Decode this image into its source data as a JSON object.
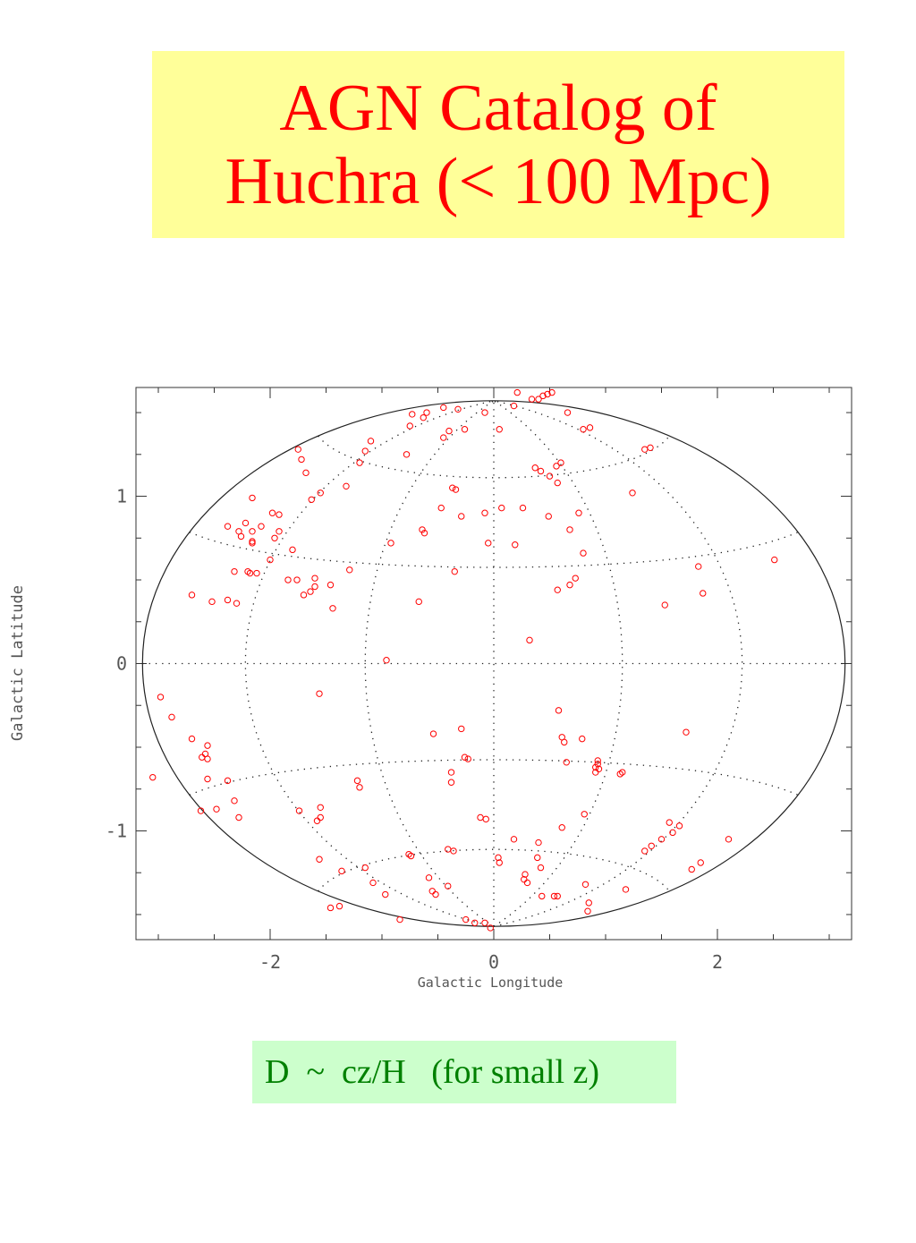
{
  "header": {
    "title_line1": "AGN Catalog of",
    "title_line2": "Huchra (< 100 Mpc)"
  },
  "footer": {
    "formula": "D  ~  cz/H   (for small z)"
  },
  "colors": {
    "title": "#ff0000",
    "title_bg": "#ffff99",
    "formula": "#008000",
    "formula_bg": "#ccffcc",
    "points": "#ff0000"
  },
  "chart_data": {
    "type": "scatter",
    "projection": "hammer-aitoff",
    "xlabel": "Galactic Longitude",
    "ylabel": "Galactic Latitude",
    "xlim": [
      -3.2,
      3.2
    ],
    "ylim": [
      -1.65,
      1.65
    ],
    "xticks": [
      -2,
      0,
      2
    ],
    "yticks": [
      -1,
      0,
      1
    ],
    "xtick_labels": [
      "-2",
      "0",
      "2"
    ],
    "ytick_labels": [
      "-1",
      "0",
      "1"
    ],
    "grid": "dotted graticule",
    "marker": "open circle",
    "points": [
      [
        -0.08,
        1.5
      ],
      [
        0.21,
        1.62
      ],
      [
        -0.63,
        1.47
      ],
      [
        -0.6,
        1.5
      ],
      [
        -0.45,
        1.53
      ],
      [
        -0.32,
        1.52
      ],
      [
        -0.73,
        1.49
      ],
      [
        0.18,
        1.54
      ],
      [
        0.4,
        1.58
      ],
      [
        0.44,
        1.6
      ],
      [
        0.48,
        1.61
      ],
      [
        0.52,
        1.62
      ],
      [
        0.34,
        1.58
      ],
      [
        0.66,
        1.5
      ],
      [
        0.8,
        1.4
      ],
      [
        0.86,
        1.41
      ],
      [
        -0.45,
        1.35
      ],
      [
        -0.4,
        1.39
      ],
      [
        -0.26,
        1.4
      ],
      [
        0.05,
        1.4
      ],
      [
        -0.75,
        1.42
      ],
      [
        -0.78,
        1.25
      ],
      [
        -1.2,
        1.2
      ],
      [
        -1.15,
        1.27
      ],
      [
        -1.1,
        1.33
      ],
      [
        -1.32,
        1.06
      ],
      [
        -1.68,
        1.14
      ],
      [
        -1.72,
        1.22
      ],
      [
        -1.75,
        1.28
      ],
      [
        -1.55,
        1.02
      ],
      [
        -1.63,
        0.98
      ],
      [
        -0.34,
        1.04
      ],
      [
        -0.37,
        1.05
      ],
      [
        0.42,
        1.15
      ],
      [
        0.5,
        1.12
      ],
      [
        0.56,
        1.18
      ],
      [
        0.37,
        1.17
      ],
      [
        0.6,
        1.2
      ],
      [
        0.57,
        1.08
      ],
      [
        1.35,
        1.28
      ],
      [
        1.4,
        1.29
      ],
      [
        1.24,
        1.02
      ],
      [
        -0.08,
        0.9
      ],
      [
        0.07,
        0.93
      ],
      [
        0.26,
        0.93
      ],
      [
        0.76,
        0.9
      ],
      [
        0.49,
        0.88
      ],
      [
        0.68,
        0.8
      ],
      [
        -0.47,
        0.93
      ],
      [
        -0.29,
        0.88
      ],
      [
        -0.64,
        0.8
      ],
      [
        -0.62,
        0.78
      ],
      [
        -2.16,
        0.99
      ],
      [
        -2.38,
        0.82
      ],
      [
        -2.28,
        0.79
      ],
      [
        -2.26,
        0.76
      ],
      [
        -2.22,
        0.84
      ],
      [
        -2.16,
        0.79
      ],
      [
        -2.16,
        0.73
      ],
      [
        -2.16,
        0.72
      ],
      [
        -2.08,
        0.82
      ],
      [
        -1.98,
        0.9
      ],
      [
        -1.92,
        0.89
      ],
      [
        -1.92,
        0.79
      ],
      [
        -1.96,
        0.75
      ],
      [
        -1.8,
        0.68
      ],
      [
        -2.0,
        0.62
      ],
      [
        -2.12,
        0.54
      ],
      [
        -2.18,
        0.54
      ],
      [
        -2.2,
        0.55
      ],
      [
        -2.32,
        0.55
      ],
      [
        -1.76,
        0.5
      ],
      [
        -1.84,
        0.5
      ],
      [
        -1.6,
        0.51
      ],
      [
        -1.6,
        0.46
      ],
      [
        -1.7,
        0.41
      ],
      [
        -1.64,
        0.43
      ],
      [
        -1.46,
        0.47
      ],
      [
        -1.44,
        0.33
      ],
      [
        -1.29,
        0.56
      ],
      [
        -2.38,
        0.38
      ],
      [
        -2.52,
        0.37
      ],
      [
        -2.7,
        0.41
      ],
      [
        -2.3,
        0.36
      ],
      [
        -0.92,
        0.72
      ],
      [
        -0.35,
        0.55
      ],
      [
        -0.05,
        0.72
      ],
      [
        0.19,
        0.71
      ],
      [
        0.57,
        0.44
      ],
      [
        0.68,
        0.47
      ],
      [
        0.73,
        0.51
      ],
      [
        0.8,
        0.66
      ],
      [
        1.83,
        0.58
      ],
      [
        1.87,
        0.42
      ],
      [
        1.53,
        0.35
      ],
      [
        2.51,
        0.62
      ],
      [
        -0.67,
        0.37
      ],
      [
        0.32,
        0.14
      ],
      [
        -0.96,
        0.02
      ],
      [
        -1.56,
        -0.18
      ],
      [
        -2.98,
        -0.2
      ],
      [
        -2.88,
        -0.32
      ],
      [
        -2.7,
        -0.45
      ],
      [
        -2.56,
        -0.49
      ],
      [
        -2.58,
        -0.54
      ],
      [
        -2.61,
        -0.56
      ],
      [
        -2.56,
        -0.57
      ],
      [
        -3.05,
        -0.68
      ],
      [
        -2.56,
        -0.69
      ],
      [
        -2.38,
        -0.7
      ],
      [
        -2.62,
        -0.88
      ],
      [
        -2.48,
        -0.87
      ],
      [
        -2.32,
        -0.82
      ],
      [
        -2.28,
        -0.92
      ],
      [
        -1.55,
        -0.86
      ],
      [
        -1.55,
        -0.92
      ],
      [
        -1.58,
        -0.94
      ],
      [
        -1.74,
        -0.88
      ],
      [
        -1.2,
        -0.74
      ],
      [
        -1.22,
        -0.7
      ],
      [
        -0.54,
        -0.42
      ],
      [
        -0.29,
        -0.39
      ],
      [
        -0.26,
        -0.56
      ],
      [
        -0.23,
        -0.57
      ],
      [
        -0.38,
        -0.65
      ],
      [
        -0.38,
        -0.71
      ],
      [
        -0.12,
        -0.92
      ],
      [
        -0.07,
        -0.93
      ],
      [
        0.58,
        -0.28
      ],
      [
        0.61,
        -0.44
      ],
      [
        0.63,
        -0.47
      ],
      [
        0.65,
        -0.59
      ],
      [
        0.79,
        -0.45
      ],
      [
        0.93,
        -0.58
      ],
      [
        0.93,
        -0.6
      ],
      [
        0.91,
        -0.62
      ],
      [
        0.94,
        -0.63
      ],
      [
        0.91,
        -0.65
      ],
      [
        1.13,
        -0.66
      ],
      [
        1.15,
        -0.65
      ],
      [
        1.72,
        -0.41
      ],
      [
        2.1,
        -1.05
      ],
      [
        0.81,
        -0.9
      ],
      [
        0.61,
        -0.98
      ],
      [
        0.4,
        -1.07
      ],
      [
        0.18,
        -1.05
      ],
      [
        0.04,
        -1.16
      ],
      [
        0.05,
        -1.19
      ],
      [
        0.39,
        -1.16
      ],
      [
        0.42,
        -1.22
      ],
      [
        0.28,
        -1.26
      ],
      [
        0.27,
        -1.29
      ],
      [
        0.3,
        -1.31
      ],
      [
        0.43,
        -1.39
      ],
      [
        0.54,
        -1.39
      ],
      [
        0.57,
        -1.39
      ],
      [
        0.82,
        -1.32
      ],
      [
        0.85,
        -1.43
      ],
      [
        0.84,
        -1.48
      ],
      [
        1.18,
        -1.35
      ],
      [
        1.35,
        -1.12
      ],
      [
        1.41,
        -1.09
      ],
      [
        1.5,
        -1.05
      ],
      [
        1.57,
        -0.95
      ],
      [
        1.6,
        -1.01
      ],
      [
        1.66,
        -0.97
      ],
      [
        1.77,
        -1.23
      ],
      [
        1.85,
        -1.19
      ],
      [
        -0.36,
        -1.12
      ],
      [
        -0.41,
        -1.11
      ],
      [
        -0.76,
        -1.14
      ],
      [
        -0.74,
        -1.15
      ],
      [
        -1.15,
        -1.22
      ],
      [
        -1.56,
        -1.17
      ],
      [
        -1.36,
        -1.24
      ],
      [
        -1.08,
        -1.31
      ],
      [
        -0.97,
        -1.38
      ],
      [
        -0.58,
        -1.28
      ],
      [
        -0.55,
        -1.36
      ],
      [
        -0.52,
        -1.38
      ],
      [
        -0.41,
        -1.33
      ],
      [
        -0.25,
        -1.53
      ],
      [
        -0.17,
        -1.55
      ],
      [
        -0.08,
        -1.55
      ],
      [
        -0.03,
        -1.58
      ],
      [
        -0.84,
        -1.53
      ],
      [
        -1.38,
        -1.45
      ],
      [
        -1.46,
        -1.46
      ]
    ]
  }
}
